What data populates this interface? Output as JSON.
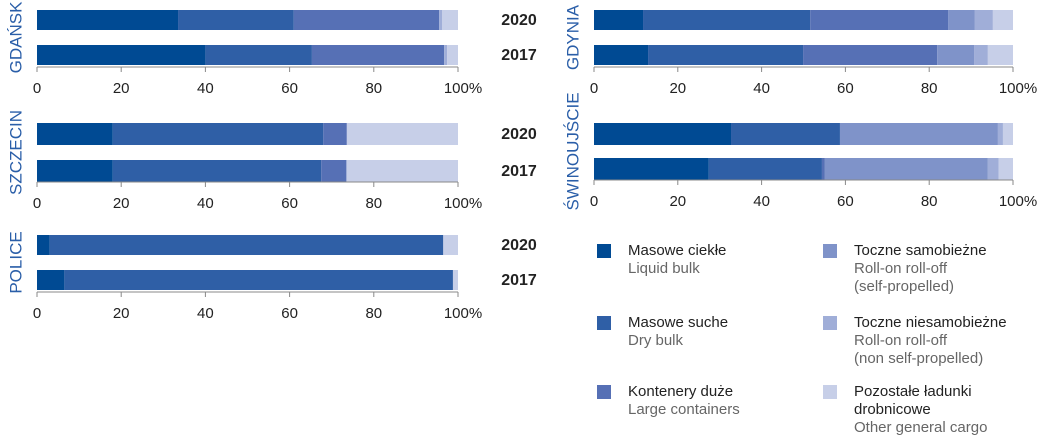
{
  "chart_data": [
    {
      "type": "stacked-barh",
      "title": "GDAŃSK",
      "categories": [
        "2020",
        "2017"
      ],
      "series": [
        {
          "values": [
            33.5,
            40
          ]
        },
        {
          "values": [
            27.5,
            25.3
          ]
        },
        {
          "values": [
            34.5,
            31.4
          ]
        },
        {
          "values": [
            0,
            0
          ]
        },
        {
          "values": [
            0.7,
            0.7
          ]
        },
        {
          "values": [
            3.8,
            2.6
          ]
        }
      ],
      "xlim": [
        0,
        100
      ],
      "xticks": [
        0,
        20,
        40,
        60,
        80,
        {
          "value": 100,
          "label": "100%"
        }
      ]
    },
    {
      "type": "stacked-barh",
      "title": "SZCZECIN",
      "categories": [
        "2020",
        "2017"
      ],
      "series": [
        {
          "values": [
            18,
            18
          ]
        },
        {
          "values": [
            50,
            49.5
          ]
        },
        {
          "values": [
            5.6,
            6
          ]
        },
        {
          "values": [
            0,
            0
          ]
        },
        {
          "values": [
            0,
            0
          ]
        },
        {
          "values": [
            26.4,
            26.5
          ]
        }
      ],
      "xlim": [
        0,
        100
      ],
      "xticks": [
        0,
        20,
        40,
        60,
        80,
        {
          "value": 100,
          "label": "100%"
        }
      ]
    },
    {
      "type": "stacked-barh",
      "title": "POLICE",
      "categories": [
        "2020",
        "2017"
      ],
      "series": [
        {
          "values": [
            3,
            6.5
          ]
        },
        {
          "values": [
            93.5,
            92.3
          ]
        },
        {
          "values": [
            0,
            0
          ]
        },
        {
          "values": [
            0,
            0
          ]
        },
        {
          "values": [
            0,
            0
          ]
        },
        {
          "values": [
            3.5,
            1.2
          ]
        }
      ],
      "xlim": [
        0,
        100
      ],
      "xticks": [
        0,
        20,
        40,
        60,
        80,
        {
          "value": 100,
          "label": "100%"
        }
      ]
    },
    {
      "type": "stacked-barh",
      "title": "GDYNIA",
      "categories": [
        null,
        null
      ],
      "series": [
        {
          "values": [
            11.7,
            12.9
          ]
        },
        {
          "values": [
            39.9,
            37
          ]
        },
        {
          "values": [
            32.9,
            32
          ]
        },
        {
          "values": [
            6.4,
            8.8
          ]
        },
        {
          "values": [
            4.3,
            3.3
          ]
        },
        {
          "values": [
            4.8,
            6
          ]
        }
      ],
      "xlim": [
        0,
        100
      ],
      "xticks": [
        0,
        20,
        40,
        60,
        80,
        {
          "value": 100,
          "label": "100%"
        }
      ]
    },
    {
      "type": "stacked-barh",
      "title": "ŚWINOUJŚCIE",
      "categories": [
        null,
        null
      ],
      "series": [
        {
          "values": [
            32.7,
            27.4
          ]
        },
        {
          "values": [
            26,
            27
          ]
        },
        {
          "values": [
            0,
            0.7
          ]
        },
        {
          "values": [
            37.7,
            38.9
          ]
        },
        {
          "values": [
            1.2,
            2.6
          ]
        },
        {
          "values": [
            2.4,
            3.4
          ]
        }
      ],
      "xlim": [
        0,
        100
      ],
      "xticks": [
        0,
        20,
        40,
        60,
        80,
        {
          "value": 100,
          "label": "100%"
        }
      ]
    }
  ],
  "legend": [
    {
      "name": [
        "Masowe ciekłe"
      ],
      "name_en": [
        "Liquid bulk"
      ],
      "color": "#004a93"
    },
    {
      "name": [
        "Masowe suche"
      ],
      "name_en": [
        "Dry bulk"
      ],
      "color": "#2f5fa6"
    },
    {
      "name": [
        "Kontenery duże"
      ],
      "name_en": [
        "Large containers"
      ],
      "color": "#5670b5"
    },
    {
      "name": [
        "Toczne samobieżne"
      ],
      "name_en": [
        "Roll-on roll-off",
        "(self-propelled)"
      ],
      "color": "#7f93c9"
    },
    {
      "name": [
        "Toczne niesamobieżne"
      ],
      "name_en": [
        "Roll-on roll-off",
        "(non self-propelled)"
      ],
      "color": "#a0aed8"
    },
    {
      "name": [
        "Pozostałe ładunki",
        "drobnicowe"
      ],
      "name_en": [
        "Other general cargo"
      ],
      "color": "#c7cfe8"
    }
  ]
}
